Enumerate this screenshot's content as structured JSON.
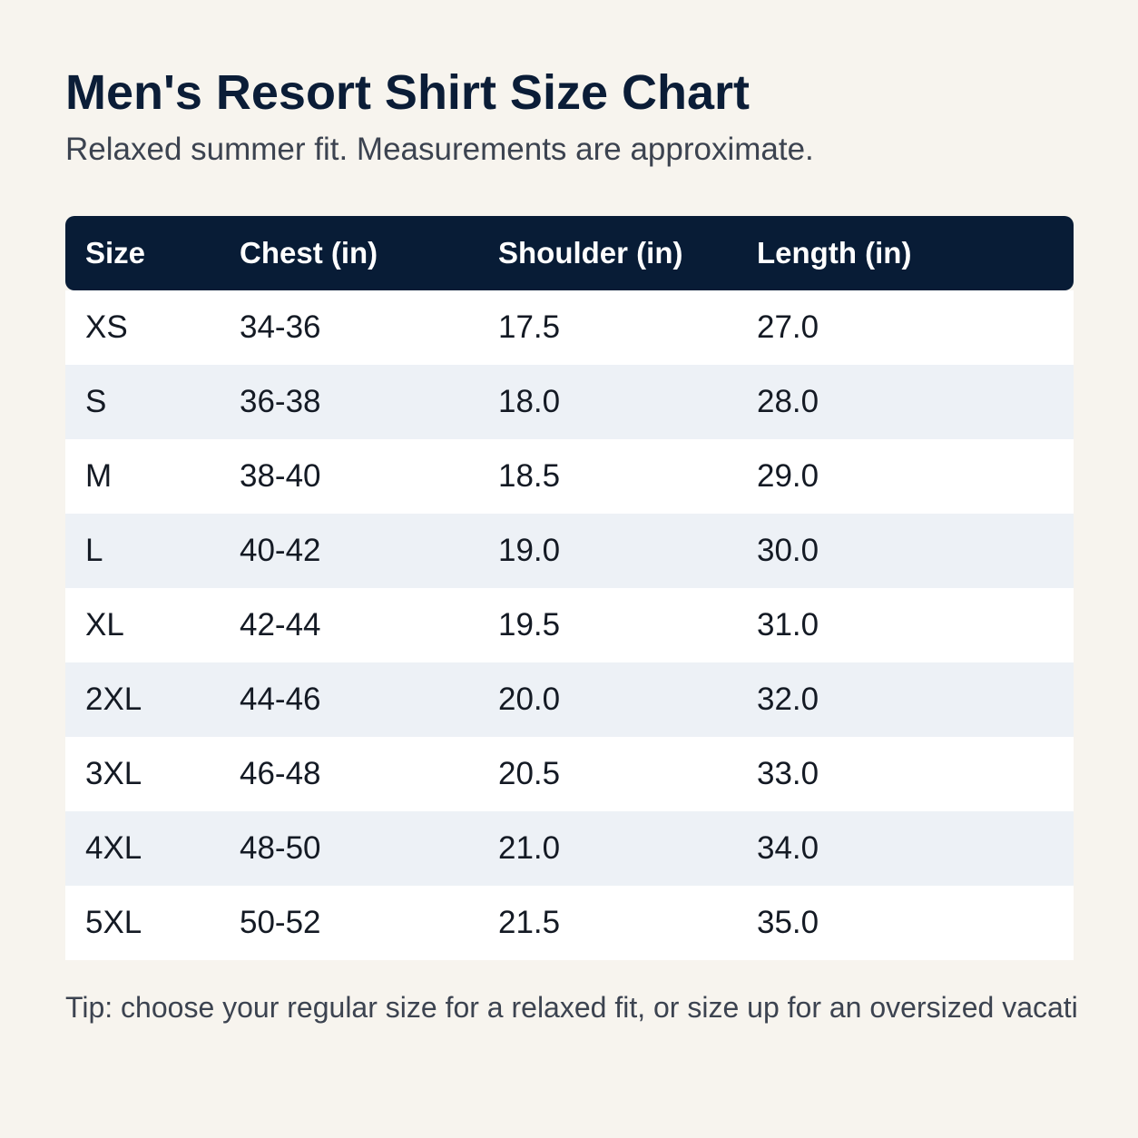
{
  "header": {
    "title": "Men's Resort Shirt Size Chart",
    "subtitle": "Relaxed summer fit. Measurements are approximate."
  },
  "table": {
    "columns": [
      "Size",
      "Chest (in)",
      "Shoulder (in)",
      "Length (in)"
    ],
    "rows": [
      [
        "XS",
        "34-36",
        "17.5",
        "27.0"
      ],
      [
        "S",
        "36-38",
        "18.0",
        "28.0"
      ],
      [
        "M",
        "38-40",
        "18.5",
        "29.0"
      ],
      [
        "L",
        "40-42",
        "19.0",
        "30.0"
      ],
      [
        "XL",
        "42-44",
        "19.5",
        "31.0"
      ],
      [
        "2XL",
        "44-46",
        "20.0",
        "32.0"
      ],
      [
        "3XL",
        "46-48",
        "20.5",
        "33.0"
      ],
      [
        "4XL",
        "48-50",
        "21.0",
        "34.0"
      ],
      [
        "5XL",
        "50-52",
        "21.5",
        "35.0"
      ]
    ]
  },
  "footer": {
    "tip": "Tip: choose your regular size for a relaxed fit, or size up for an oversized vacati"
  }
}
